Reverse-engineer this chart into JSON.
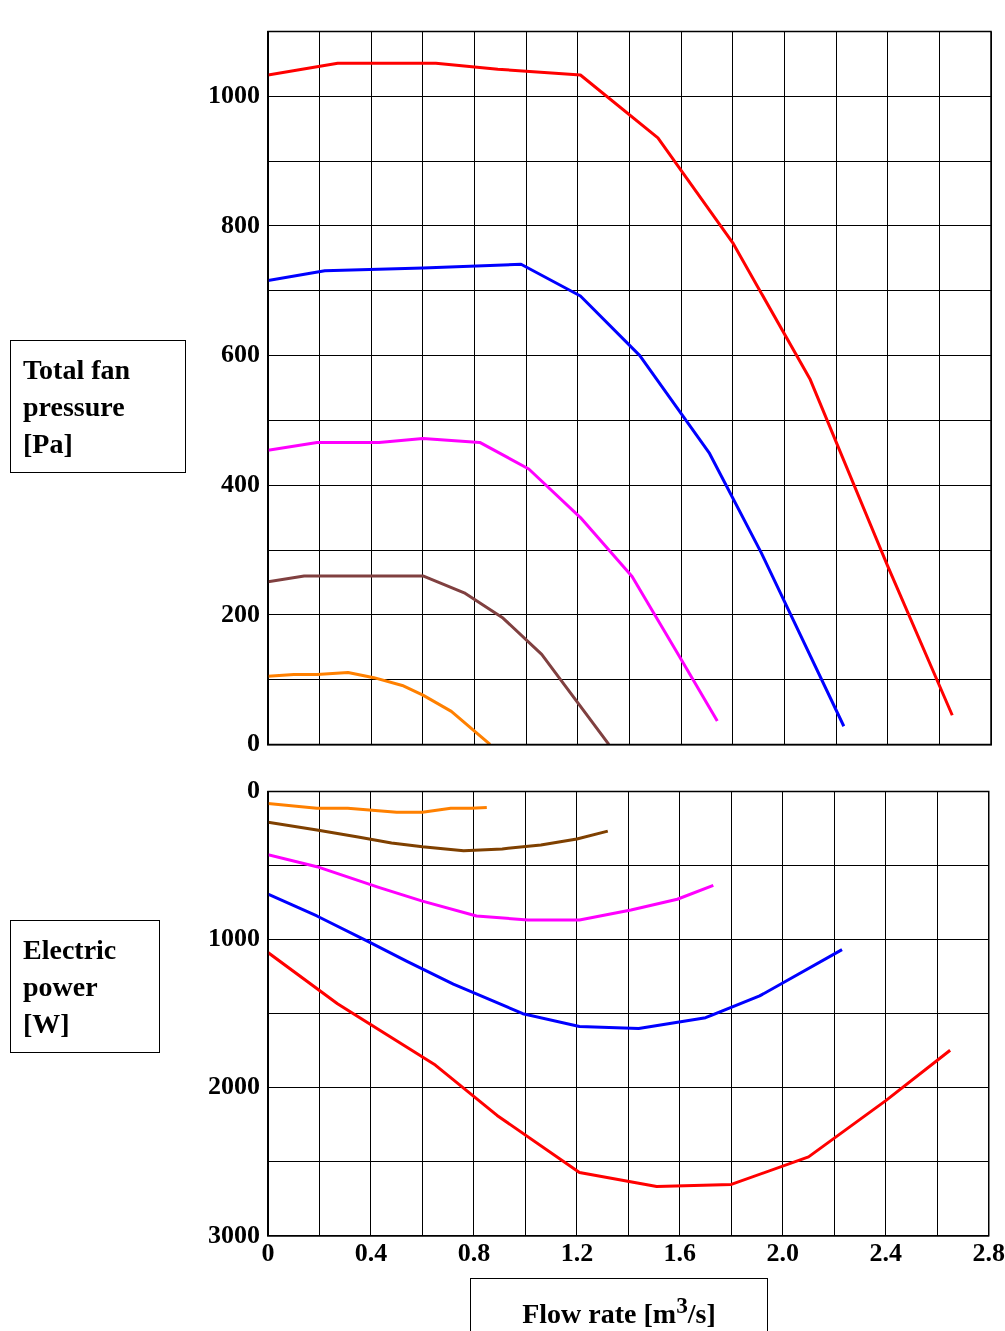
{
  "chart_data": [
    {
      "type": "line",
      "ylabel": "Total fan pressure [Pa]",
      "xlim": [
        0,
        2.8
      ],
      "xticks": [
        {
          "value": 0,
          "label": null
        },
        {
          "value": 0.2,
          "label": null
        },
        {
          "value": 0.4,
          "label": null
        },
        {
          "value": 0.6,
          "label": null
        },
        {
          "value": 0.8,
          "label": null
        },
        {
          "value": 1,
          "label": null
        },
        {
          "value": 1.2,
          "label": null
        },
        {
          "value": 1.4,
          "label": null
        },
        {
          "value": 1.6,
          "label": null
        },
        {
          "value": 1.8,
          "label": null
        },
        {
          "value": 2,
          "label": null
        },
        {
          "value": 2.2,
          "label": null
        },
        {
          "value": 2.4,
          "label": null
        },
        {
          "value": 2.6,
          "label": null
        },
        {
          "value": 2.8,
          "label": null
        }
      ],
      "ylim": [
        0,
        1100
      ],
      "yticks": [
        0,
        {
          "value": 100,
          "label": null
        },
        200,
        {
          "value": 300,
          "label": null
        },
        400,
        {
          "value": 500,
          "label": null
        },
        600,
        {
          "value": 700,
          "label": null
        },
        800,
        {
          "value": 900,
          "label": null
        },
        1000,
        {
          "value": 1100,
          "label": null
        }
      ],
      "tick_labels": "y",
      "grid": true,
      "legend": false,
      "marker": "none",
      "line_style": "solid",
      "series": [
        {
          "color": "#ff0000",
          "x": [
            0,
            0.27,
            0.65,
            0.89,
            1.21,
            1.51,
            1.8,
            2.1,
            2.4,
            2.65
          ],
          "values": [
            1033,
            1051,
            1051,
            1042,
            1033,
            936,
            774,
            563,
            275,
            45
          ]
        },
        {
          "color": "#0000ff",
          "x": [
            0,
            0.22,
            0.6,
            0.98,
            1.21,
            1.44,
            1.71,
            1.91,
            2.23
          ],
          "values": [
            716,
            731,
            735,
            741,
            692,
            600,
            449,
            296,
            28
          ]
        },
        {
          "color": "#ff00ff",
          "x": [
            0,
            0.19,
            0.43,
            0.6,
            0.82,
            1.01,
            1.21,
            1.41,
            1.59,
            1.74
          ],
          "values": [
            454,
            466,
            466,
            472,
            466,
            425,
            350,
            259,
            138,
            36
          ]
        },
        {
          "color": "#804040",
          "x": [
            0,
            0.14,
            0.6,
            0.76,
            0.91,
            1.06,
            1.32
          ],
          "values": [
            251,
            260,
            260,
            234,
            195,
            139,
            0
          ]
        },
        {
          "color": "#ff8000",
          "x": [
            0,
            0.1,
            0.19,
            0.31,
            0.41,
            0.52,
            0.6,
            0.71,
            0.86
          ],
          "values": [
            105,
            108,
            108,
            111,
            103,
            91,
            76,
            51,
            0
          ]
        }
      ]
    },
    {
      "type": "line",
      "ylabel": "Electric power [W]",
      "xlabel": "Flow rate [m$^{3}$/s]",
      "xlim": [
        0,
        2.8
      ],
      "xticks": [
        0,
        {
          "value": 0.2,
          "label": null
        },
        {
          "value": 0.4,
          "label": "0.4"
        },
        {
          "value": 0.6,
          "label": null
        },
        {
          "value": 0.8,
          "label": "0.8"
        },
        {
          "value": 1,
          "label": null
        },
        {
          "value": 1.2,
          "label": "1.2"
        },
        {
          "value": 1.4,
          "label": null
        },
        {
          "value": 1.6,
          "label": "1.6"
        },
        {
          "value": 1.8,
          "label": null
        },
        {
          "value": 2,
          "label": "2.0"
        },
        {
          "value": 2.2,
          "label": null
        },
        {
          "value": 2.4,
          "label": "2.4"
        },
        {
          "value": 2.6,
          "label": null
        },
        {
          "value": 2.8,
          "label": "2.8"
        }
      ],
      "ylim": [
        3000,
        0
      ],
      "yticks": [
        0,
        {
          "value": 500,
          "label": null
        },
        1000,
        {
          "value": 1500,
          "label": null
        },
        2000,
        {
          "value": 2500,
          "label": null
        },
        3000
      ],
      "grid": true,
      "legend": false,
      "marker": "none",
      "line_style": "solid",
      "series": [
        {
          "color": "#ff8000",
          "x": [
            0,
            0.19,
            0.31,
            0.5,
            0.6,
            0.71,
            0.79,
            0.85
          ],
          "values": [
            80,
            113,
            113,
            140,
            140,
            113,
            113,
            107
          ]
        },
        {
          "color": "#7f4000",
          "x": [
            0,
            0.19,
            0.35,
            0.48,
            0.6,
            0.76,
            0.91,
            1.06,
            1.2,
            1.32
          ],
          "values": [
            207,
            260,
            307,
            347,
            373,
            400,
            387,
            360,
            320,
            267
          ]
        },
        {
          "color": "#ff00ff",
          "x": [
            0,
            0.19,
            0.43,
            0.6,
            0.81,
            1.01,
            1.21,
            1.41,
            1.59,
            1.73
          ],
          "values": [
            427,
            507,
            647,
            740,
            840,
            867,
            867,
            800,
            727,
            633
          ]
        },
        {
          "color": "#0000ff",
          "x": [
            0,
            0.19,
            0.39,
            0.54,
            0.72,
            0.99,
            1.21,
            1.44,
            1.7,
            1.91,
            2.23
          ],
          "values": [
            693,
            840,
            1013,
            1147,
            1300,
            1500,
            1587,
            1600,
            1527,
            1380,
            1067
          ]
        },
        {
          "color": "#ff0000",
          "x": [
            0,
            0.27,
            0.65,
            0.89,
            1.21,
            1.51,
            1.8,
            2.1,
            2.4,
            2.65
          ],
          "values": [
            1087,
            1433,
            1847,
            2187,
            2573,
            2667,
            2653,
            2467,
            2087,
            1747
          ]
        }
      ]
    }
  ]
}
